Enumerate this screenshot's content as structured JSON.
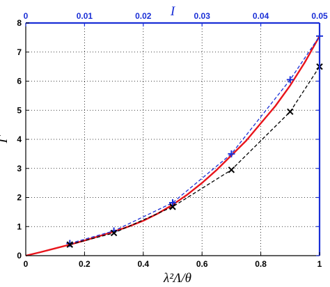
{
  "chart_data": {
    "type": "line",
    "xlabel": "λ²Λ/θ",
    "ylabel": "Γ",
    "top_xlabel": "I",
    "xlim": [
      0,
      1
    ],
    "ylim": [
      0,
      8
    ],
    "top_xlim": [
      0,
      0.05
    ],
    "grid": true,
    "x_ticks": [
      "0",
      "0.2",
      "0.4",
      "0.6",
      "0.8",
      "1"
    ],
    "y_ticks": [
      "0",
      "1",
      "2",
      "3",
      "4",
      "5",
      "6",
      "7",
      "8"
    ],
    "top_ticks": [
      "0",
      "0.01",
      "0.02",
      "0.03",
      "0.04",
      "0.05"
    ],
    "colors": {
      "curve": "#e8141b",
      "blue": "#1a2fd6",
      "black": "#000000",
      "top_axis": "#1a2fd6"
    },
    "series": [
      {
        "style": "solid",
        "color": "#e8141b",
        "x": [
          0,
          0.05,
          0.1,
          0.15,
          0.2,
          0.25,
          0.3,
          0.35,
          0.4,
          0.45,
          0.5,
          0.55,
          0.6,
          0.65,
          0.7,
          0.75,
          0.8,
          0.85,
          0.9,
          0.95,
          1.0
        ],
        "y": [
          0,
          0.12,
          0.25,
          0.38,
          0.52,
          0.67,
          0.83,
          1.0,
          1.2,
          1.45,
          1.75,
          2.1,
          2.5,
          2.95,
          3.45,
          3.95,
          4.55,
          5.15,
          5.85,
          6.65,
          7.55
        ]
      },
      {
        "style": "dashed",
        "marker": "+",
        "color": "#1a2fd6",
        "x": [
          0.15,
          0.3,
          0.5,
          0.7,
          0.9,
          1.0
        ],
        "y": [
          0.42,
          0.85,
          1.82,
          3.5,
          6.05,
          7.55
        ]
      },
      {
        "style": "dashed",
        "marker": "x",
        "color": "#000000",
        "x": [
          0.15,
          0.3,
          0.5,
          0.7,
          0.9,
          1.0
        ],
        "y": [
          0.38,
          0.78,
          1.68,
          2.95,
          4.95,
          6.5
        ]
      }
    ]
  }
}
